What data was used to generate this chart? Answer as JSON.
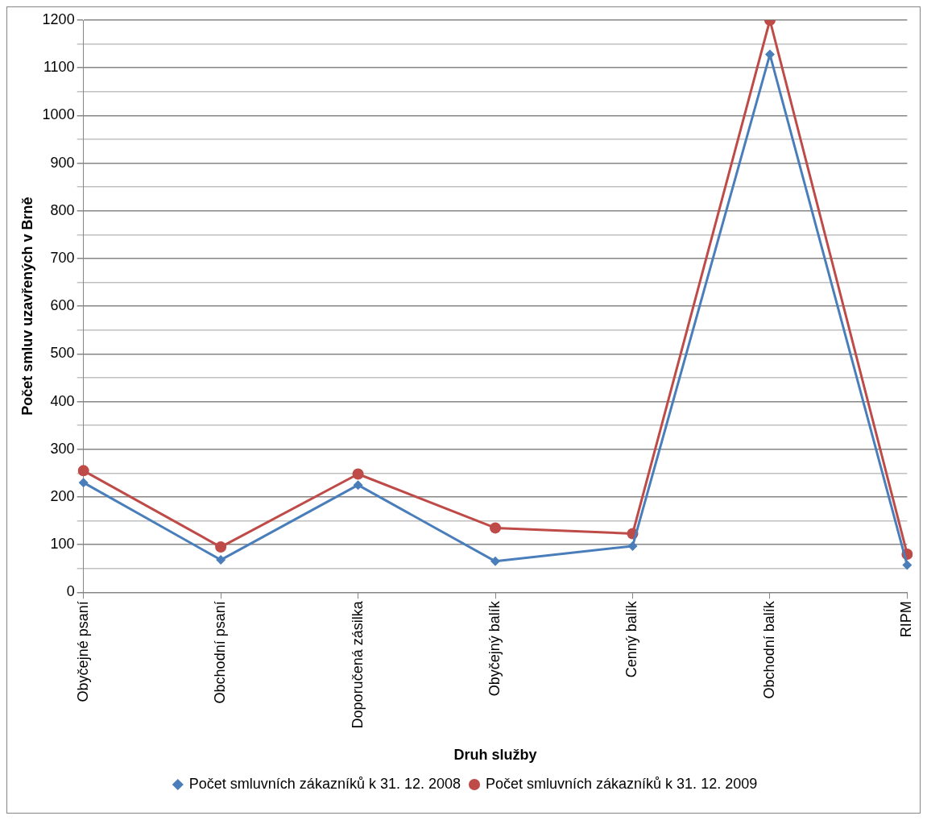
{
  "chart_data": {
    "type": "line",
    "xlabel": "Druh služby",
    "ylabel": "Počet smluv uzavřených v Brně",
    "categories": [
      "Obyčejné psaní",
      "Obchodní psaní",
      "Doporučená zásilka",
      "Obyčejný balík",
      "Cenný balík",
      "Obchodní balík",
      "RIPM"
    ],
    "series": [
      {
        "name": "Počet smluvních zákazníků k 31. 12. 2008",
        "color": "#4a7ebb",
        "marker": "diamond",
        "values": [
          230,
          68,
          225,
          65,
          97,
          1128,
          57
        ]
      },
      {
        "name": "Počet smluvních zákazníků k 31. 12. 2009",
        "color": "#be4b48",
        "marker": "circle",
        "values": [
          255,
          95,
          248,
          135,
          123,
          1200,
          80
        ]
      }
    ],
    "ylim": [
      0,
      1200
    ],
    "yticks": [
      0,
      {
        "value": 50,
        "label": null
      },
      100,
      {
        "value": 150,
        "label": null
      },
      200,
      {
        "value": 250,
        "label": null
      },
      300,
      {
        "value": 350,
        "label": null
      },
      400,
      {
        "value": 450,
        "label": null
      },
      500,
      {
        "value": 550,
        "label": null
      },
      600,
      {
        "value": 650,
        "label": null
      },
      700,
      {
        "value": 750,
        "label": null
      },
      800,
      {
        "value": 850,
        "label": null
      },
      900,
      {
        "value": 950,
        "label": null
      },
      1000,
      {
        "value": 1050,
        "label": null
      },
      1100,
      {
        "value": 1150,
        "label": null
      },
      1200
    ],
    "grid": "y",
    "legend": "bottom",
    "line_style": "solid"
  }
}
